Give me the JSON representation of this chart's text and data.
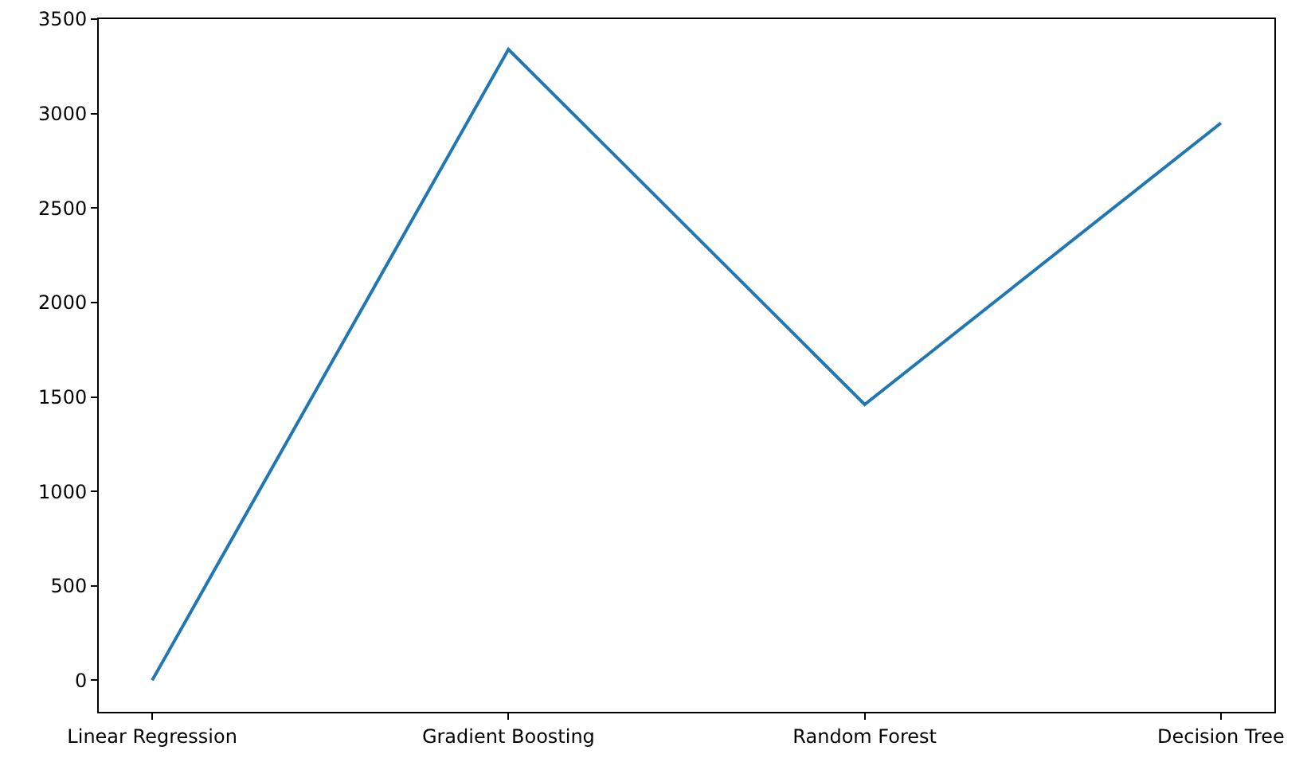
{
  "chart_data": {
    "type": "line",
    "categories": [
      "Linear Regression",
      "Gradient Boosting",
      "Random Forest",
      "Decision Tree"
    ],
    "series": [
      {
        "color": "#1f77b4",
        "values": [
          0,
          3340,
          1460,
          2950
        ]
      }
    ],
    "ylim": [
      -167,
      3500
    ],
    "yticks": [
      0,
      500,
      1000,
      1500,
      2000,
      2500,
      3000,
      3500
    ],
    "grid": false,
    "marker": "none",
    "line_style": "solid"
  }
}
